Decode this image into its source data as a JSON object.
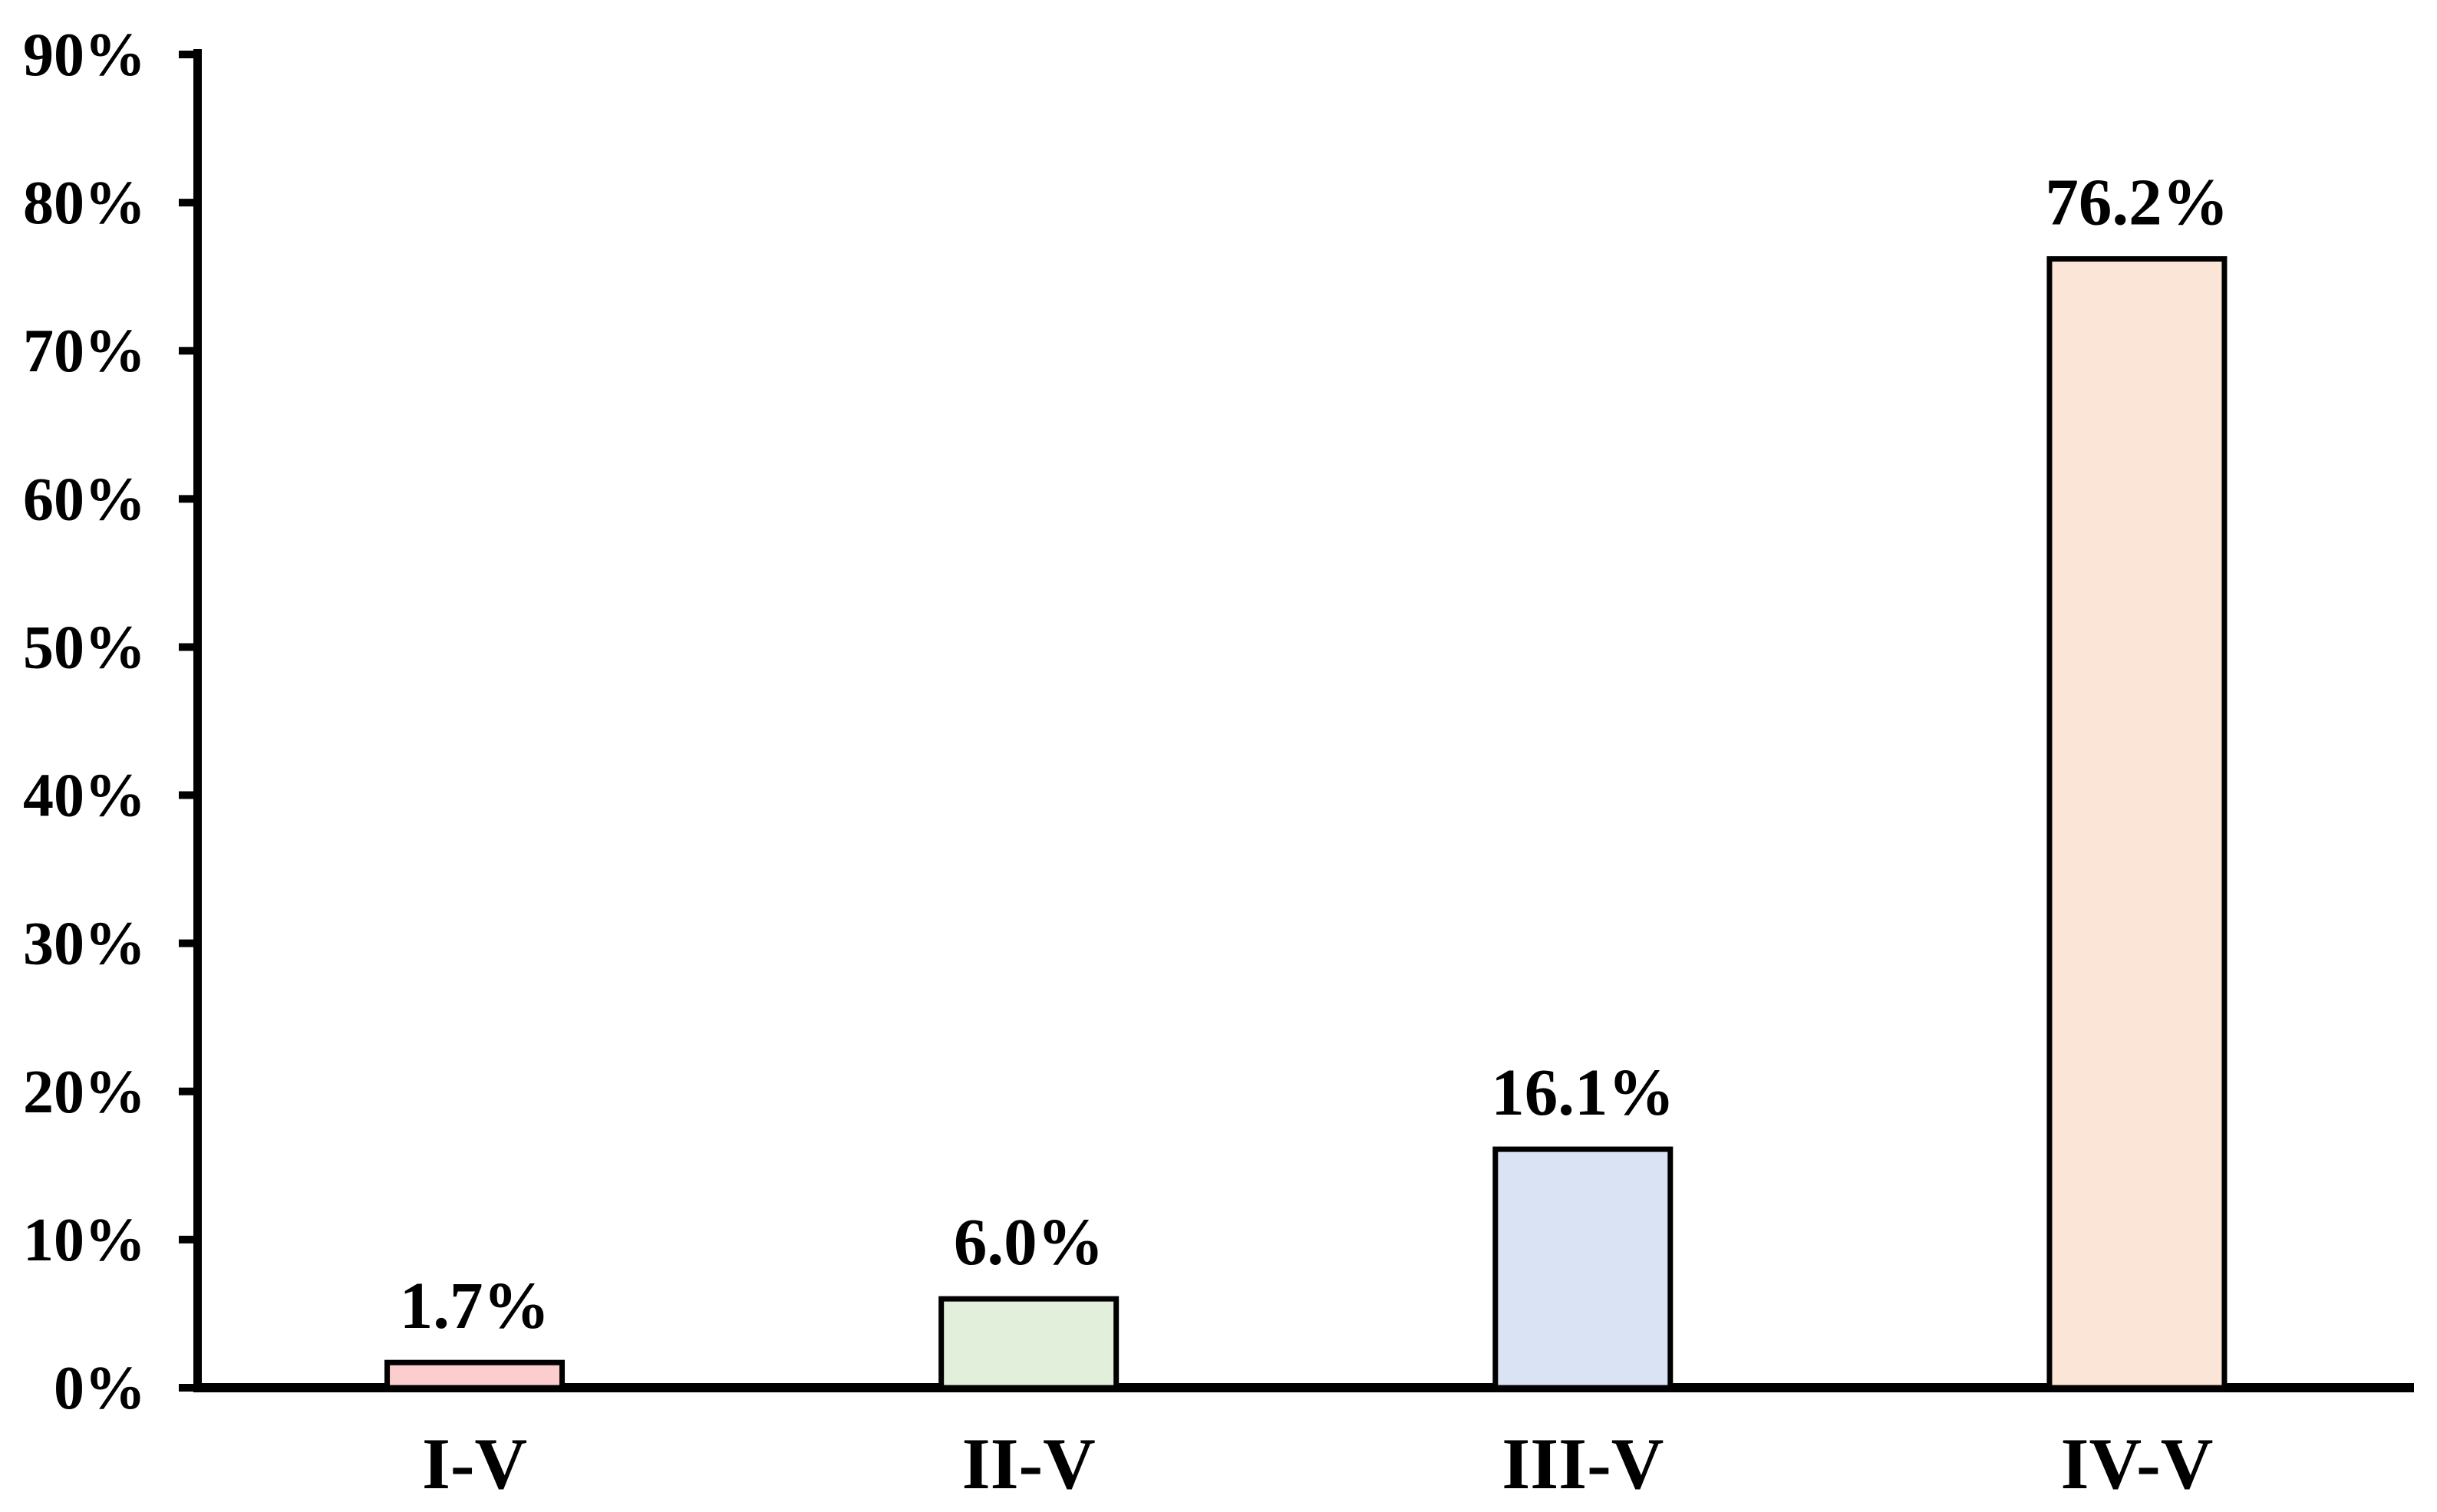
{
  "chart_data": {
    "type": "bar",
    "categories": [
      "I-V",
      "II-V",
      "III-V",
      "IV-V"
    ],
    "values": [
      1.7,
      6.0,
      16.1,
      76.2
    ],
    "bar_labels": [
      "1.7%",
      "6.0%",
      "16.1%",
      "76.2%"
    ],
    "bar_colors": [
      "#FCCDCE",
      "#E2EFDA",
      "#DAE3F3",
      "#FBE5D6"
    ],
    "bar_border_color": "#000000",
    "title": "",
    "xlabel": "",
    "ylabel": "",
    "ylim": [
      0,
      90
    ],
    "ytick_interval": 10,
    "ytick_labels": [
      "0%",
      "10%",
      "20%",
      "30%",
      "40%",
      "50%",
      "60%",
      "70%",
      "80%",
      "90%"
    ],
    "grid": "off",
    "legend": "none",
    "axis_color": "#000000",
    "background_color": "#FFFFFF"
  }
}
